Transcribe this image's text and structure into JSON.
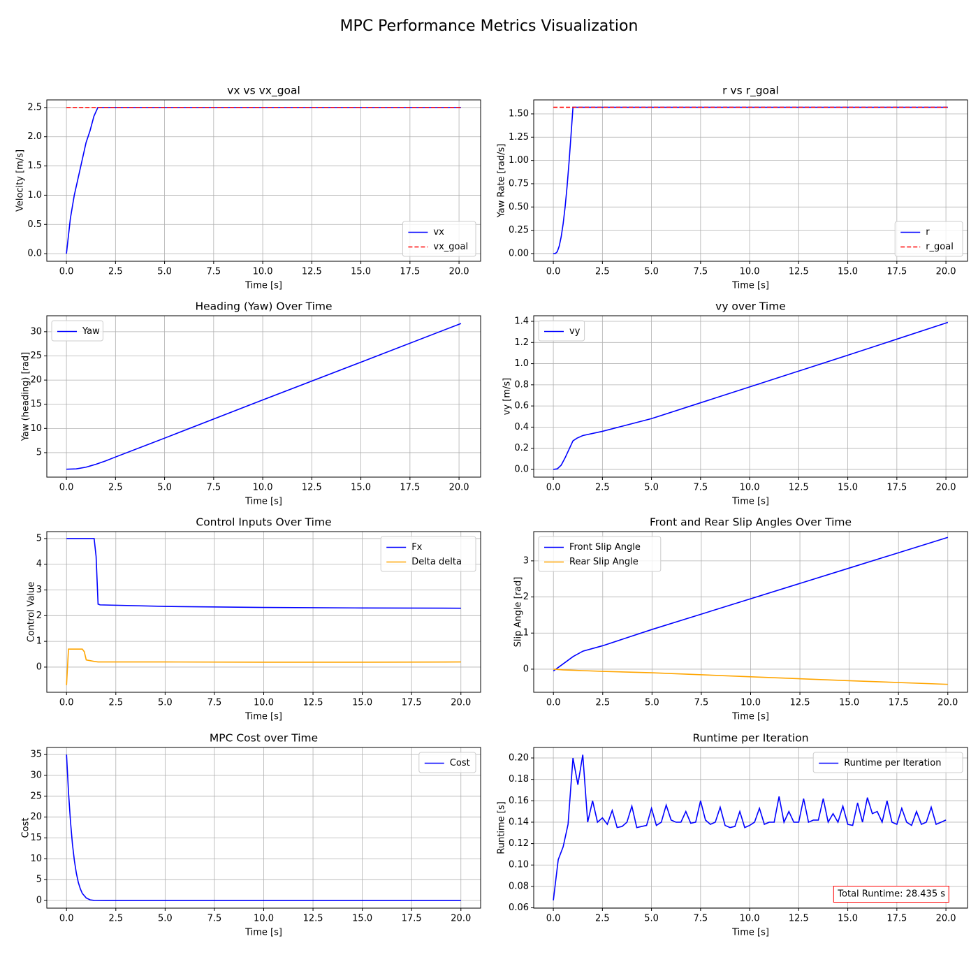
{
  "title": "MPC Performance Metrics Visualization",
  "chart_data": [
    {
      "type": "line",
      "title": "vx vs vx_goal",
      "xlabel": "Time [s]",
      "ylabel": "Velocity [m/s]",
      "grid": true,
      "legend": "lower right",
      "x": [
        0,
        0.2,
        0.4,
        0.6,
        0.8,
        1.0,
        1.2,
        1.4,
        1.6,
        2,
        3,
        5,
        7.5,
        10,
        12.5,
        15,
        17.5,
        20.1
      ],
      "series": [
        {
          "name": "vx",
          "color": "#0000ff",
          "style": "solid",
          "values": [
            0,
            0.6,
            1.0,
            1.3,
            1.6,
            1.9,
            2.1,
            2.35,
            2.5,
            2.5,
            2.5,
            2.5,
            2.5,
            2.5,
            2.5,
            2.5,
            2.5,
            2.5
          ]
        },
        {
          "name": "vx_goal",
          "color": "#ff0000",
          "style": "dashed",
          "values": [
            2.5,
            2.5,
            2.5,
            2.5,
            2.5,
            2.5,
            2.5,
            2.5,
            2.5,
            2.5,
            2.5,
            2.5,
            2.5,
            2.5,
            2.5,
            2.5,
            2.5,
            2.5
          ]
        }
      ],
      "xlim": [
        -1.0,
        21.1
      ],
      "xticks": [
        {
          "value": 0,
          "label": "0.0"
        },
        2.5,
        {
          "value": 5,
          "label": "5.0"
        },
        7.5,
        {
          "value": 10,
          "label": "10.0"
        },
        12.5,
        {
          "value": 15,
          "label": "15.0"
        },
        17.5,
        {
          "value": 20,
          "label": "20.0"
        }
      ],
      "ylim": [
        -0.13,
        2.63
      ],
      "yticks": [
        {
          "value": 0,
          "label": "0.0"
        },
        0.5,
        {
          "value": 1,
          "label": "1.0"
        },
        1.5,
        {
          "value": 2,
          "label": "2.0"
        },
        2.5
      ]
    },
    {
      "type": "line",
      "title": "r vs r_goal",
      "xlabel": "Time [s]",
      "ylabel": "Yaw Rate [rad/s]",
      "grid": true,
      "legend": "lower right",
      "x": [
        0,
        0.1,
        0.2,
        0.3,
        0.4,
        0.5,
        0.6,
        0.7,
        0.8,
        0.9,
        1.0,
        2,
        5,
        10,
        15,
        20.1
      ],
      "series": [
        {
          "name": "r",
          "color": "#0000ff",
          "style": "solid",
          "values": [
            0,
            0,
            0.02,
            0.08,
            0.18,
            0.32,
            0.5,
            0.72,
            0.98,
            1.27,
            1.571,
            1.571,
            1.571,
            1.571,
            1.571,
            1.571
          ]
        },
        {
          "name": "r_goal",
          "color": "#ff0000",
          "style": "dashed",
          "values": [
            1.571,
            1.571,
            1.571,
            1.571,
            1.571,
            1.571,
            1.571,
            1.571,
            1.571,
            1.571,
            1.571,
            1.571,
            1.571,
            1.571,
            1.571,
            1.571
          ]
        }
      ],
      "xlim": [
        -1.0,
        21.1
      ],
      "xticks": [
        {
          "value": 0,
          "label": "0.0"
        },
        2.5,
        {
          "value": 5,
          "label": "5.0"
        },
        7.5,
        {
          "value": 10,
          "label": "10.0"
        },
        12.5,
        {
          "value": 15,
          "label": "15.0"
        },
        17.5,
        {
          "value": 20,
          "label": "20.0"
        }
      ],
      "ylim": [
        -0.083,
        1.65
      ],
      "yticks": [
        {
          "value": 0,
          "label": "0.00"
        },
        0.25,
        {
          "value": 0.5,
          "label": "0.50"
        },
        0.75,
        {
          "value": 1,
          "label": "1.00"
        },
        1.25,
        {
          "value": 1.5,
          "label": "1.50"
        }
      ]
    },
    {
      "type": "line",
      "title": "Heading (Yaw) Over Time",
      "xlabel": "Time [s]",
      "ylabel": "Yaw (heading) [rad]",
      "grid": true,
      "legend": "upper left",
      "x": [
        0,
        0.5,
        1,
        1.5,
        2,
        2.5,
        5,
        10,
        15,
        20.1
      ],
      "series": [
        {
          "name": "Yaw",
          "color": "#0000ff",
          "style": "solid",
          "values": [
            1.57,
            1.65,
            2.0,
            2.6,
            3.3,
            4.1,
            8.0,
            15.9,
            23.7,
            31.7
          ]
        }
      ],
      "xlim": [
        -1.0,
        21.1
      ],
      "xticks": [
        {
          "value": 0,
          "label": "0.0"
        },
        2.5,
        {
          "value": 5,
          "label": "5.0"
        },
        7.5,
        {
          "value": 10,
          "label": "10.0"
        },
        12.5,
        {
          "value": 15,
          "label": "15.0"
        },
        17.5,
        {
          "value": 20,
          "label": "20.0"
        }
      ],
      "ylim": [
        -0.06,
        33.3
      ],
      "yticks": [
        5,
        10,
        15,
        20,
        25,
        30
      ]
    },
    {
      "type": "line",
      "title": "vy over Time",
      "xlabel": "Time [s]",
      "ylabel": "vy [m/s]",
      "grid": true,
      "legend": "upper left",
      "x": [
        0,
        0.2,
        0.4,
        0.6,
        0.8,
        1.0,
        1.2,
        1.5,
        2.5,
        5,
        10,
        15,
        20.1
      ],
      "series": [
        {
          "name": "vy",
          "color": "#0000ff",
          "style": "solid",
          "values": [
            0,
            0.005,
            0.04,
            0.11,
            0.19,
            0.27,
            0.295,
            0.32,
            0.36,
            0.48,
            0.78,
            1.08,
            1.39
          ]
        }
      ],
      "xlim": [
        -1.0,
        21.1
      ],
      "xticks": [
        {
          "value": 0,
          "label": "0.0"
        },
        2.5,
        {
          "value": 5,
          "label": "5.0"
        },
        7.5,
        {
          "value": 10,
          "label": "10.0"
        },
        12.5,
        {
          "value": 15,
          "label": "15.0"
        },
        17.5,
        {
          "value": 20,
          "label": "20.0"
        }
      ],
      "ylim": [
        -0.073,
        1.453
      ],
      "yticks": [
        {
          "value": 0,
          "label": "0.0"
        },
        0.2,
        0.4,
        0.6,
        0.8,
        {
          "value": 1,
          "label": "1.0"
        },
        1.2,
        1.4
      ]
    },
    {
      "type": "line",
      "title": "Control Inputs Over Time",
      "xlabel": "Time [s]",
      "ylabel": "Control Value",
      "grid": true,
      "legend": "upper right",
      "x": [
        0,
        0.1,
        0.8,
        0.9,
        1.0,
        1.4,
        1.5,
        1.6,
        1.7,
        5,
        10,
        15,
        20
      ],
      "series": [
        {
          "name": "Fx",
          "color": "#0000ff",
          "style": "solid",
          "values": [
            5,
            5,
            5,
            5,
            5,
            5,
            4.3,
            2.45,
            2.42,
            2.36,
            2.32,
            2.3,
            2.29
          ]
        },
        {
          "name": "Delta delta",
          "color": "#ffa500",
          "style": "solid",
          "values": [
            -0.7,
            0.7,
            0.7,
            0.6,
            0.28,
            0.22,
            0.21,
            0.2,
            0.2,
            0.2,
            0.19,
            0.19,
            0.2
          ]
        }
      ],
      "xlim": [
        -1.0,
        21.0
      ],
      "xticks": [
        {
          "value": 0,
          "label": "0.0"
        },
        2.5,
        {
          "value": 5,
          "label": "5.0"
        },
        7.5,
        {
          "value": 10,
          "label": "10.0"
        },
        12.5,
        {
          "value": 15,
          "label": "15.0"
        },
        17.5,
        {
          "value": 20,
          "label": "20.0"
        }
      ],
      "ylim": [
        -0.98,
        5.27
      ],
      "yticks": [
        0,
        1,
        2,
        3,
        4,
        5
      ]
    },
    {
      "type": "line",
      "title": "Front and Rear Slip Angles Over Time",
      "xlabel": "Time [s]",
      "ylabel": "Slip Angle [rad]",
      "grid": true,
      "legend": "upper left",
      "x": [
        0,
        0.5,
        1,
        1.5,
        2.5,
        5,
        10,
        15,
        20
      ],
      "series": [
        {
          "name": "Front Slip Angle",
          "color": "#0000ff",
          "style": "solid",
          "values": [
            -0.05,
            0.15,
            0.35,
            0.5,
            0.65,
            1.1,
            1.95,
            2.8,
            3.65
          ]
        },
        {
          "name": "Rear Slip Angle",
          "color": "#ffa500",
          "style": "solid",
          "values": [
            0,
            -0.02,
            -0.03,
            -0.04,
            -0.06,
            -0.1,
            -0.21,
            -0.32,
            -0.42
          ]
        }
      ],
      "xlim": [
        -1.0,
        21.0
      ],
      "xticks": [
        {
          "value": 0,
          "label": "0.0"
        },
        2.5,
        {
          "value": 5,
          "label": "5.0"
        },
        7.5,
        {
          "value": 10,
          "label": "10.0"
        },
        12.5,
        {
          "value": 15,
          "label": "15.0"
        },
        17.5,
        {
          "value": 20,
          "label": "20.0"
        }
      ],
      "ylim": [
        -0.64,
        3.81
      ],
      "yticks": [
        0,
        1,
        2,
        3
      ]
    },
    {
      "type": "line",
      "title": "MPC Cost over Time",
      "xlabel": "Time [s]",
      "ylabel": "Cost",
      "grid": true,
      "legend": "upper right",
      "x": [
        0,
        0.1,
        0.2,
        0.3,
        0.4,
        0.5,
        0.6,
        0.7,
        0.8,
        1.0,
        1.2,
        1.4,
        2,
        20
      ],
      "series": [
        {
          "name": "Cost",
          "color": "#0000ff",
          "style": "solid",
          "values": [
            35,
            26,
            19,
            13.5,
            9.5,
            6.5,
            4.3,
            2.8,
            1.7,
            0.6,
            0.15,
            0.02,
            0,
            0
          ]
        }
      ],
      "xlim": [
        -1.0,
        21.0
      ],
      "xticks": [
        {
          "value": 0,
          "label": "0.0"
        },
        2.5,
        {
          "value": 5,
          "label": "5.0"
        },
        7.5,
        {
          "value": 10,
          "label": "10.0"
        },
        12.5,
        {
          "value": 15,
          "label": "15.0"
        },
        17.5,
        {
          "value": 20,
          "label": "20.0"
        }
      ],
      "ylim": [
        -1.84,
        36.7
      ],
      "yticks": [
        0,
        5,
        10,
        15,
        20,
        25,
        30,
        35
      ]
    },
    {
      "type": "line",
      "title": "Runtime per Iteration",
      "xlabel": "Time [s]",
      "ylabel": "Runtime [s]",
      "grid": true,
      "legend": "upper right",
      "annotation": "Total Runtime: 28.435 s",
      "annotation_color": "#ff0000",
      "x": [
        0,
        0.25,
        0.5,
        0.75,
        1,
        1.25,
        1.5,
        1.75,
        2,
        2.25,
        2.5,
        2.75,
        3,
        3.25,
        3.5,
        3.75,
        4,
        4.25,
        4.5,
        4.75,
        5,
        5.25,
        5.5,
        5.75,
        6,
        6.25,
        6.5,
        6.75,
        7,
        7.25,
        7.5,
        7.75,
        8,
        8.25,
        8.5,
        8.75,
        9,
        9.25,
        9.5,
        9.75,
        10,
        10.25,
        10.5,
        10.75,
        11,
        11.25,
        11.5,
        11.75,
        12,
        12.25,
        12.5,
        12.75,
        13,
        13.25,
        13.5,
        13.75,
        14,
        14.25,
        14.5,
        14.75,
        15,
        15.25,
        15.5,
        15.75,
        16,
        16.25,
        16.5,
        16.75,
        17,
        17.25,
        17.5,
        17.75,
        18,
        18.25,
        18.5,
        18.75,
        19,
        19.25,
        19.5,
        19.75,
        20
      ],
      "series": [
        {
          "name": "Runtime per Iteration",
          "color": "#0000ff",
          "style": "solid",
          "values": [
            0.067,
            0.105,
            0.117,
            0.138,
            0.2,
            0.175,
            0.203,
            0.14,
            0.16,
            0.14,
            0.144,
            0.138,
            0.151,
            0.135,
            0.136,
            0.14,
            0.155,
            0.135,
            0.136,
            0.137,
            0.153,
            0.137,
            0.14,
            0.156,
            0.142,
            0.14,
            0.14,
            0.15,
            0.139,
            0.14,
            0.16,
            0.142,
            0.138,
            0.14,
            0.154,
            0.137,
            0.135,
            0.136,
            0.15,
            0.135,
            0.137,
            0.14,
            0.153,
            0.138,
            0.14,
            0.14,
            0.164,
            0.14,
            0.15,
            0.14,
            0.14,
            0.162,
            0.14,
            0.142,
            0.142,
            0.162,
            0.14,
            0.148,
            0.14,
            0.155,
            0.138,
            0.137,
            0.158,
            0.14,
            0.163,
            0.148,
            0.15,
            0.14,
            0.16,
            0.14,
            0.138,
            0.153,
            0.14,
            0.137,
            0.15,
            0.138,
            0.14,
            0.154,
            0.138,
            0.14,
            0.142
          ]
        }
      ],
      "xlim": [
        -1.0,
        21.1
      ],
      "xticks": [
        {
          "value": 0,
          "label": "0.0"
        },
        2.5,
        {
          "value": 5,
          "label": "5.0"
        },
        7.5,
        {
          "value": 10,
          "label": "10.0"
        },
        12.5,
        {
          "value": 15,
          "label": "15.0"
        },
        17.5,
        {
          "value": 20,
          "label": "20.0"
        }
      ],
      "ylim": [
        0.0597,
        0.2098
      ],
      "yticks": [
        0.06,
        0.08,
        {
          "value": 0.1,
          "label": "0.10"
        },
        0.12,
        0.14,
        0.16,
        0.18,
        {
          "value": 0.2,
          "label": "0.20"
        }
      ]
    }
  ]
}
